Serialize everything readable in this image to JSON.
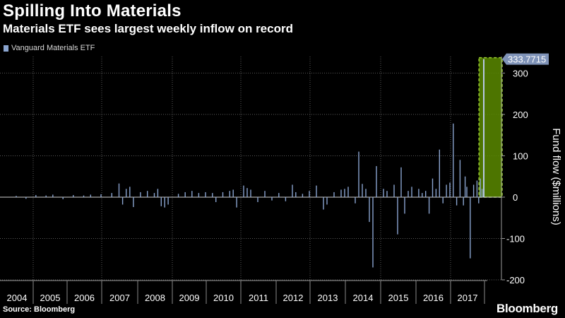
{
  "header": {
    "title": "Spilling Into Materials",
    "subtitle": "Materials ETF sees largest weekly inflow on record"
  },
  "footer": {
    "source": "Source: Bloomberg",
    "brand": "Bloomberg"
  },
  "colors": {
    "background": "#000000",
    "series": "#8aa4cf",
    "highlight": "#5a8a00",
    "highlight_border": "#9acd32",
    "grid": "#5a5a5a"
  },
  "chart_data": {
    "type": "bar",
    "title": "Spilling Into Materials",
    "subtitle": "Materials ETF sees largest weekly inflow on record",
    "xlabel": "",
    "ylabel": "Fund flow ($millions)",
    "ylim": [
      -200,
      340
    ],
    "yticks": [
      300,
      200,
      100,
      0,
      -100,
      -200
    ],
    "ytick_labels": [
      "300",
      "200",
      "100",
      "0",
      "-100",
      "-200"
    ],
    "xlim": [
      2004,
      2018.0
    ],
    "xticks": [
      "2004",
      "2005",
      "2006",
      "2007",
      "2008",
      "2009",
      "2010",
      "2011",
      "2012",
      "2013",
      "2014",
      "2015",
      "2016",
      "2017"
    ],
    "grid": true,
    "legend": {
      "position": "top-left",
      "entries": [
        "Vanguard Materials ETF"
      ]
    },
    "series": [
      {
        "name": "Vanguard Materials ETF",
        "color": "#8aa4cf",
        "points": [
          [
            2004.5,
            3
          ],
          [
            2004.8,
            -4
          ],
          [
            2005.1,
            5
          ],
          [
            2005.4,
            4
          ],
          [
            2005.6,
            6
          ],
          [
            2005.9,
            -5
          ],
          [
            2006.2,
            5
          ],
          [
            2006.5,
            4
          ],
          [
            2006.7,
            6
          ],
          [
            2007.0,
            7
          ],
          [
            2007.3,
            10
          ],
          [
            2007.5,
            33
          ],
          [
            2007.6,
            -18
          ],
          [
            2007.7,
            20
          ],
          [
            2007.8,
            25
          ],
          [
            2007.9,
            -24
          ],
          [
            2008.1,
            12
          ],
          [
            2008.3,
            15
          ],
          [
            2008.5,
            10
          ],
          [
            2008.6,
            20
          ],
          [
            2008.7,
            -22
          ],
          [
            2008.8,
            -25
          ],
          [
            2008.9,
            -18
          ],
          [
            2009.2,
            8
          ],
          [
            2009.4,
            12
          ],
          [
            2009.6,
            15
          ],
          [
            2009.8,
            10
          ],
          [
            2010.0,
            12
          ],
          [
            2010.2,
            10
          ],
          [
            2010.3,
            -12
          ],
          [
            2010.5,
            12
          ],
          [
            2010.7,
            15
          ],
          [
            2010.8,
            18
          ],
          [
            2010.9,
            -25
          ],
          [
            2011.1,
            28
          ],
          [
            2011.2,
            22
          ],
          [
            2011.3,
            18
          ],
          [
            2011.5,
            -12
          ],
          [
            2011.7,
            15
          ],
          [
            2011.9,
            -8
          ],
          [
            2012.1,
            10
          ],
          [
            2012.3,
            -10
          ],
          [
            2012.5,
            30
          ],
          [
            2012.6,
            12
          ],
          [
            2012.8,
            8
          ],
          [
            2013.0,
            15
          ],
          [
            2013.2,
            28
          ],
          [
            2013.4,
            -30
          ],
          [
            2013.5,
            -18
          ],
          [
            2013.7,
            12
          ],
          [
            2013.9,
            18
          ],
          [
            2014.0,
            20
          ],
          [
            2014.1,
            25
          ],
          [
            2014.3,
            -15
          ],
          [
            2014.4,
            110
          ],
          [
            2014.5,
            32
          ],
          [
            2014.6,
            20
          ],
          [
            2014.7,
            -60
          ],
          [
            2014.8,
            -170
          ],
          [
            2014.9,
            75
          ],
          [
            2015.1,
            20
          ],
          [
            2015.2,
            15
          ],
          [
            2015.4,
            30
          ],
          [
            2015.5,
            -90
          ],
          [
            2015.6,
            72
          ],
          [
            2015.7,
            -40
          ],
          [
            2015.8,
            15
          ],
          [
            2015.9,
            25
          ],
          [
            2016.1,
            20
          ],
          [
            2016.2,
            10
          ],
          [
            2016.3,
            15
          ],
          [
            2016.4,
            -40
          ],
          [
            2016.5,
            45
          ],
          [
            2016.6,
            20
          ],
          [
            2016.7,
            115
          ],
          [
            2016.8,
            -15
          ],
          [
            2016.9,
            30
          ],
          [
            2017.0,
            35
          ],
          [
            2017.1,
            178
          ],
          [
            2017.2,
            -20
          ],
          [
            2017.3,
            90
          ],
          [
            2017.4,
            -20
          ],
          [
            2017.45,
            50
          ],
          [
            2017.5,
            25
          ],
          [
            2017.6,
            -148
          ],
          [
            2017.7,
            30
          ],
          [
            2017.8,
            40
          ],
          [
            2017.85,
            -15
          ],
          [
            2017.9,
            45
          ],
          [
            2017.95,
            20
          ],
          [
            2018.0,
            333.7715
          ]
        ]
      }
    ],
    "annotations": [
      {
        "type": "last-value-label",
        "text": "333.7715"
      },
      {
        "type": "highlight-box",
        "note": "largest weekly inflow on record",
        "x_range": [
          2017.9,
          2018.0
        ]
      }
    ]
  }
}
